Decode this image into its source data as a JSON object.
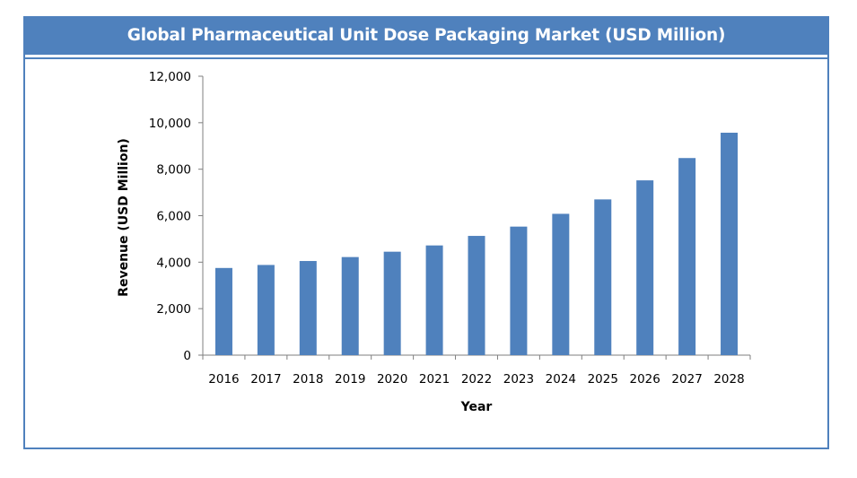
{
  "title": "Global Pharmaceutical Unit Dose Packaging Market (USD Million)",
  "colors": {
    "accent": "#4f81bd",
    "bar": "#4f81bd"
  },
  "chart_data": {
    "type": "bar",
    "title": "Global Pharmaceutical Unit Dose Packaging Market (USD Million)",
    "xlabel": "Year",
    "ylabel": "Revenue (USD Million)",
    "ylim": [
      0,
      12000
    ],
    "yticks": [
      0,
      2000,
      4000,
      6000,
      8000,
      10000,
      12000
    ],
    "ytick_labels": [
      "0",
      "2,000",
      "4,000",
      "6,000",
      "8,000",
      "10,000",
      "12,000"
    ],
    "categories": [
      "2016",
      "2017",
      "2018",
      "2019",
      "2020",
      "2021",
      "2022",
      "2023",
      "2024",
      "2025",
      "2026",
      "2027",
      "2028"
    ],
    "values": [
      3750,
      3880,
      4050,
      4220,
      4450,
      4720,
      5130,
      5530,
      6080,
      6700,
      7520,
      8480,
      9570
    ],
    "grid": false,
    "legend": "none"
  }
}
